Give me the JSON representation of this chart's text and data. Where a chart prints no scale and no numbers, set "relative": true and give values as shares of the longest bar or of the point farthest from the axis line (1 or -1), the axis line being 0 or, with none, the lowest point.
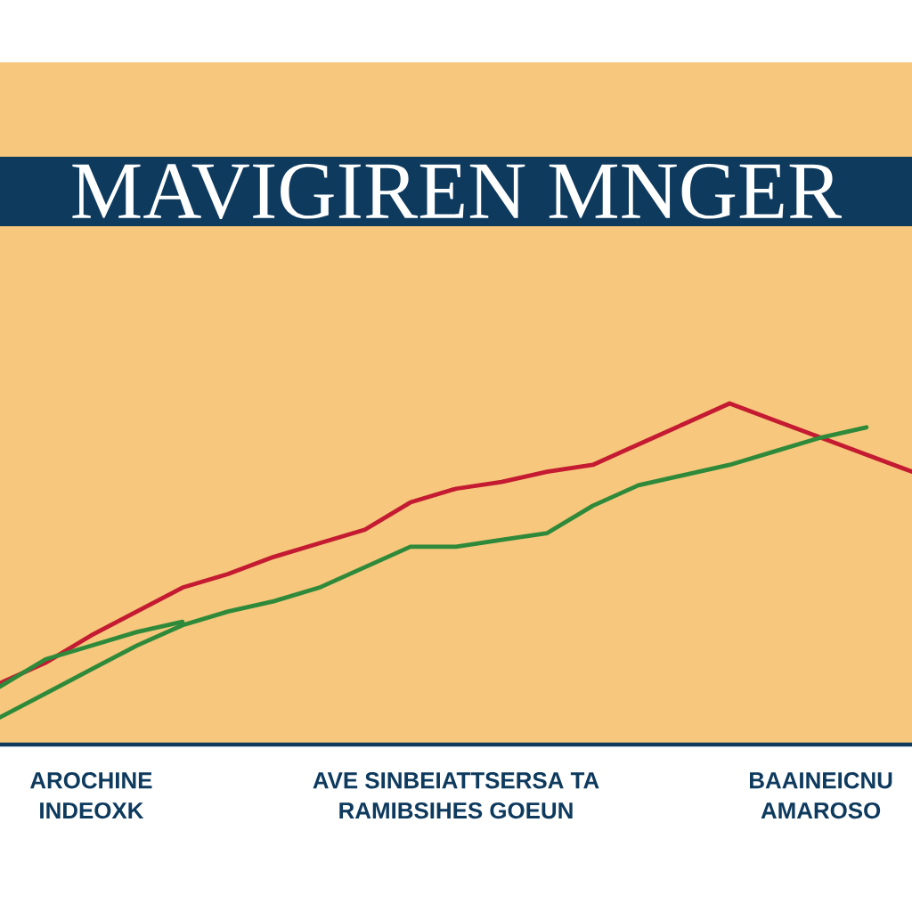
{
  "chart_data": {
    "type": "line",
    "title": "MAVIGIREN MNGER",
    "relative": true,
    "categories": [
      null,
      null,
      "AROCHINE INDEOXK",
      null,
      null,
      null,
      null,
      null,
      null,
      null,
      "AVE SINBEIATTSERSA TA RAMIBSIHES GOEUN",
      null,
      null,
      null,
      null,
      null,
      null,
      null,
      "BAAINEICNU AMAROSO",
      null,
      null
    ],
    "series": [
      {
        "color": "#c41a32",
        "values": [
          0.18,
          0.24,
          0.32,
          0.39,
          0.46,
          0.5,
          0.55,
          0.59,
          0.63,
          0.71,
          0.75,
          0.77,
          0.8,
          0.82,
          0.88,
          0.94,
          1.0,
          0.95,
          0.9,
          0.85,
          0.8
        ]
      },
      {
        "color": "#2e8a3a",
        "values": [
          0.08,
          0.15,
          0.22,
          0.29,
          0.35,
          0.39,
          0.42,
          0.46,
          0.52,
          0.58,
          0.58,
          0.6,
          0.62,
          0.7,
          0.76,
          0.79,
          0.82,
          0.86,
          0.9,
          0.93,
          null
        ]
      },
      {
        "color": "#2e8a3a",
        "values": [
          0.17,
          0.25,
          0.29,
          0.33,
          0.36,
          null,
          null,
          null,
          null,
          null,
          null,
          null,
          null,
          null,
          null,
          null,
          null,
          null,
          null,
          null,
          null
        ]
      }
    ]
  }
}
